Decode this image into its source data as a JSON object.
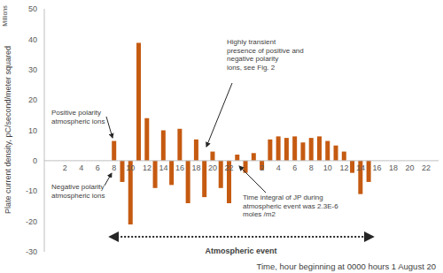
{
  "chart_data": {
    "type": "bar",
    "y_label": "Plate current density, pC/second/meter squared",
    "x_label": "Time, hour beginning at 0000 hours 1 August 20",
    "annotations": [
      "Millions",
      "Positive polarity\natmospheric ions",
      "Negative polarity\natmospheric ions",
      "Highly transient\npresence of positive and\nnegative polarity\nions, see Fig. 2",
      "Time integral of JP during\natmospheric event was 2.3E-6\nmoles /m2",
      "Atmospheric event"
    ],
    "categories": [
      null,
      null,
      "2",
      null,
      "4",
      null,
      "6",
      null,
      "8",
      null,
      "10",
      null,
      "12",
      null,
      "14",
      null,
      "16",
      null,
      "18",
      null,
      "20",
      null,
      "22",
      null,
      null,
      null,
      "2",
      null,
      "4",
      null,
      "6",
      null,
      "8",
      null,
      "10",
      null,
      "12",
      null,
      "14",
      null,
      "16",
      null,
      "18",
      null,
      "20",
      null,
      "22",
      null
    ],
    "values": [
      null,
      null,
      null,
      null,
      null,
      null,
      null,
      null,
      6.5,
      -7,
      -21,
      38.8,
      14,
      -9,
      10,
      -8,
      10.5,
      -14,
      7,
      -12,
      3,
      -9,
      -14,
      2,
      -4,
      2.5,
      -3,
      7,
      8,
      7.5,
      8,
      6,
      7.5,
      8,
      6.5,
      5,
      3,
      -4,
      -11,
      -7,
      null,
      null,
      null,
      null,
      null,
      null,
      null,
      null
    ],
    "color": "#c55a11",
    "ylim": [
      -30,
      50
    ],
    "yticks": [
      -30,
      -20,
      -10,
      0,
      10,
      20,
      30,
      40,
      50
    ],
    "grid": false
  }
}
